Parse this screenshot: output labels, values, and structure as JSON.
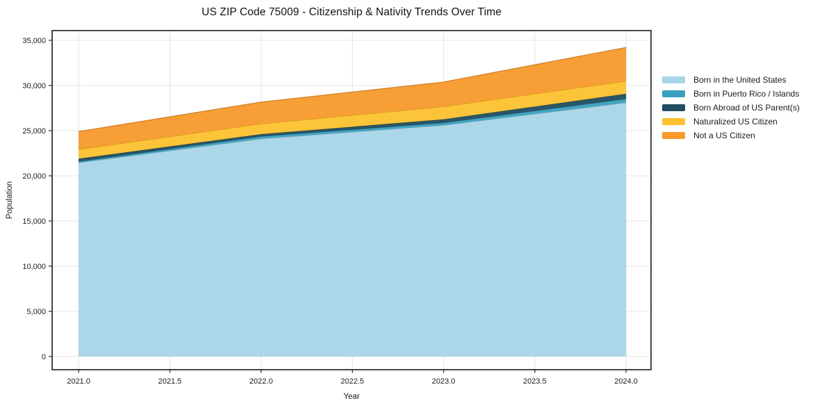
{
  "title": "US ZIP Code 75009 - Citizenship & Nativity Trends Over Time",
  "chart_data": {
    "type": "area",
    "stacked": true,
    "title": "US ZIP Code 75009 - Citizenship & Nativity Trends Over Time",
    "xlabel": "Year",
    "ylabel": "Population",
    "x": [
      2021,
      2022,
      2023,
      2024
    ],
    "series": [
      {
        "name": "Born in the United States",
        "color": "#a8d5e8",
        "values": [
          21450,
          24100,
          25600,
          28100
        ]
      },
      {
        "name": "Born in Puerto Rico / Islands",
        "color": "#3aa0c0",
        "values": [
          130,
          250,
          260,
          410
        ]
      },
      {
        "name": "Born Abroad of US Parent(s)",
        "color": "#204d60",
        "values": [
          310,
          260,
          390,
          570
        ]
      },
      {
        "name": "Naturalized US Citizen",
        "color": "#fcc12d",
        "values": [
          1030,
          1150,
          1410,
          1410
        ]
      },
      {
        "name": "Not a US Citizen",
        "color": "#f8992b",
        "values": [
          1980,
          2400,
          2720,
          3720
        ]
      }
    ],
    "totals": [
      24900,
      28160,
      30380,
      34210
    ],
    "xlim": [
      2020.855,
      2024.137
    ],
    "ylim": [
      -1462,
      36077
    ],
    "x_ticks": {
      "values": [
        2021.0,
        2021.5,
        2022.0,
        2022.5,
        2023.0,
        2023.5,
        2024.0
      ],
      "labels": [
        "2021.0",
        "2021.5",
        "2022.0",
        "2022.5",
        "2023.0",
        "2023.5",
        "2024.0"
      ]
    },
    "y_ticks": {
      "values": [
        0,
        5000,
        10000,
        15000,
        20000,
        25000,
        30000,
        35000
      ],
      "labels": [
        "0",
        "5,000",
        "10,000",
        "15,000",
        "20,000",
        "25,000",
        "30,000",
        "35,000"
      ]
    },
    "grid": true,
    "legend_position": "right-outside",
    "colors": {
      "grid": "#e4e4e4",
      "spine": "#1a1a1a",
      "tick": "#222222",
      "text": "#1a1a1a",
      "plot_background": "#ffffff"
    }
  }
}
